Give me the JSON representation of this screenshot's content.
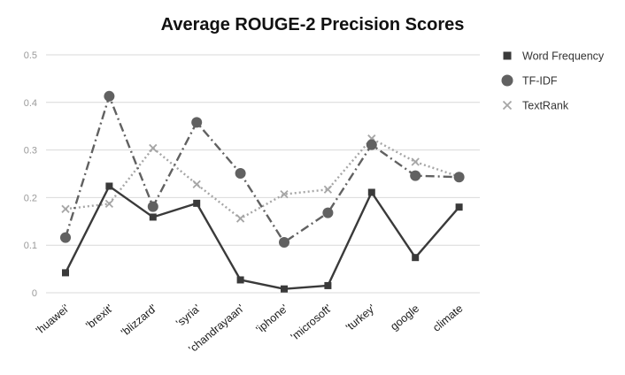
{
  "chart_data": {
    "type": "line",
    "title": "Average ROUGE-2 Precision Scores",
    "xlabel": "",
    "ylabel": "",
    "ylim": [
      0,
      0.5
    ],
    "yticks": [
      "0",
      "0.1",
      "0.2",
      "0.3",
      "0.4",
      "0.5"
    ],
    "ytick_values": [
      0,
      0.1,
      0.2,
      0.3,
      0.4,
      0.5
    ],
    "grid": true,
    "legend_position": "right",
    "categories": [
      "'huawei'",
      "'brexit'",
      "'blizzard'",
      "'syria'",
      "'chandrayaan'",
      "'iphone'",
      "'microsoft'",
      "'turkey'",
      "google",
      "climate"
    ],
    "series": [
      {
        "name": "Word Frequency",
        "marker": "square",
        "line_style": "solid",
        "color": "#3a3a3a",
        "values": [
          0.042,
          0.224,
          0.159,
          0.188,
          0.027,
          0.008,
          0.015,
          0.211,
          0.074,
          0.18
        ]
      },
      {
        "name": "TF-IDF",
        "marker": "circle",
        "line_style": "dashdot",
        "color": "#616161",
        "values": [
          0.116,
          0.413,
          0.181,
          0.358,
          0.251,
          0.106,
          0.168,
          0.311,
          0.246,
          0.243
        ]
      },
      {
        "name": "TextRank",
        "marker": "x",
        "line_style": "dotted",
        "color": "#a6a6a6",
        "values": [
          0.176,
          0.187,
          0.304,
          0.228,
          0.156,
          0.207,
          0.217,
          0.324,
          0.275,
          0.244
        ]
      }
    ]
  }
}
